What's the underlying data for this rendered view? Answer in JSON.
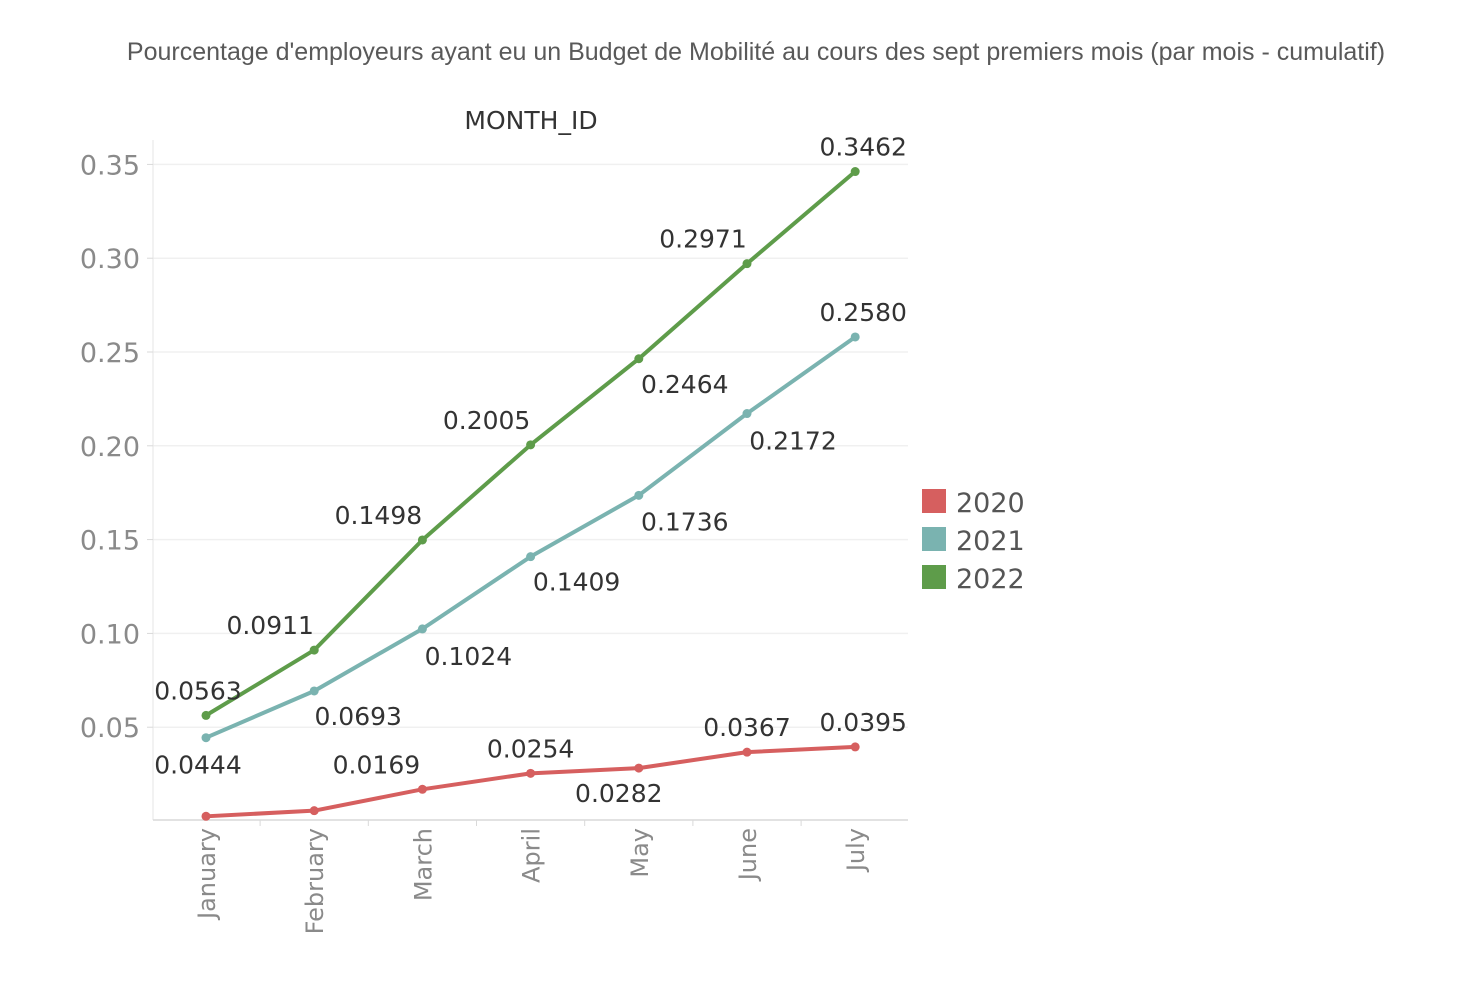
{
  "chart_data": {
    "type": "line",
    "title": "Pourcentage d'employeurs ayant eu un Budget de Mobilité au cours des sept premiers mois (par mois - cumulatif)",
    "xlabel": "MONTH_ID",
    "ylabel": "",
    "categories": [
      "January",
      "February",
      "March",
      "April",
      "May",
      "June",
      "July"
    ],
    "ylim": [
      0,
      0.36
    ],
    "yticks": [
      "0.05",
      "0.10",
      "0.15",
      "0.20",
      "0.25",
      "0.30",
      "0.35"
    ],
    "grid": true,
    "legend_position": "right",
    "series": [
      {
        "name": "2020",
        "color": "#d65f5f",
        "values": [
          0.0025,
          0.0055,
          0.0169,
          0.0254,
          0.0282,
          0.0367,
          0.0395
        ],
        "labels": [
          "",
          "",
          "0.0169",
          "0.0254",
          "0.0282",
          "0.0367",
          "0.0395"
        ]
      },
      {
        "name": "2021",
        "color": "#7ab3b0",
        "values": [
          0.0444,
          0.0693,
          0.1024,
          0.1409,
          0.1736,
          0.2172,
          0.258
        ],
        "labels": [
          "0.0444",
          "0.0693",
          "0.1024",
          "0.1409",
          "0.1736",
          "0.2172",
          "0.2580"
        ]
      },
      {
        "name": "2022",
        "color": "#5e9c4a",
        "values": [
          0.0563,
          0.0911,
          0.1498,
          0.2005,
          0.2464,
          0.2971,
          0.3462
        ],
        "labels": [
          "0.0563",
          "0.0911",
          "0.1498",
          "0.2005",
          "0.2464",
          "0.2971",
          "0.3462"
        ]
      }
    ]
  }
}
